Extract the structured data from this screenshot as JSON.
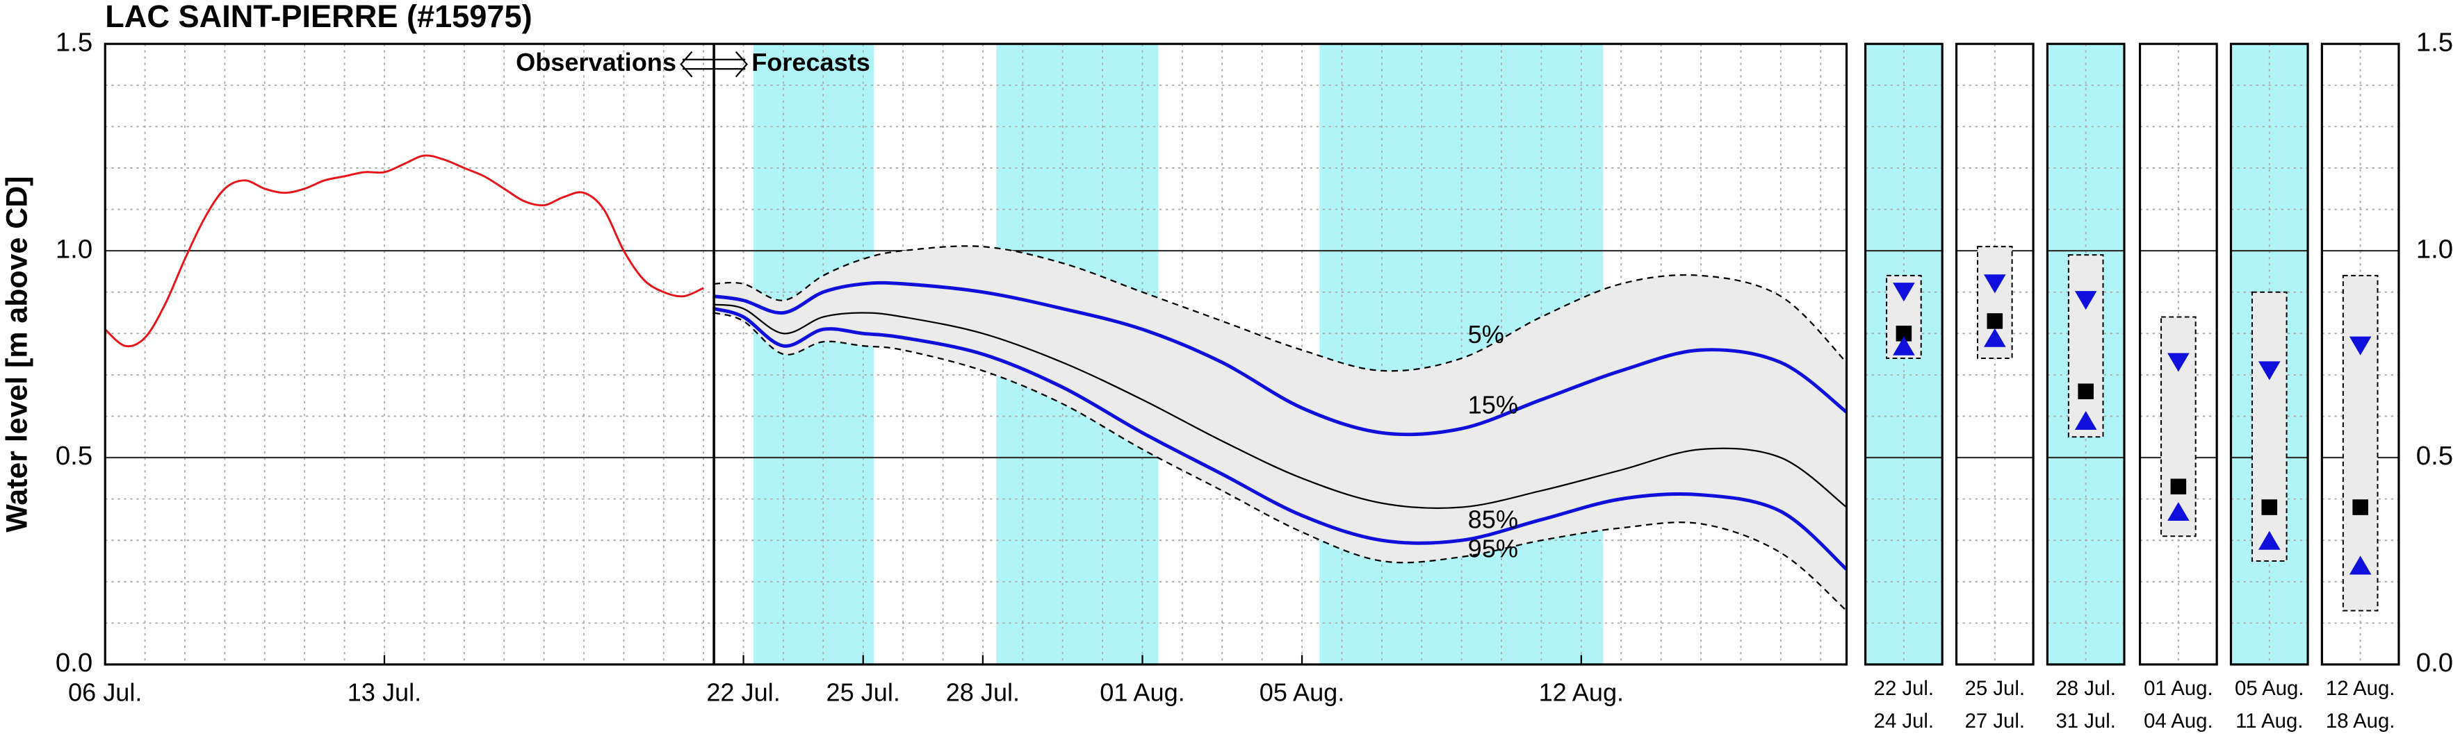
{
  "chart_data": [
    {
      "type": "line",
      "title": "LAC SAINT-PIERRE (#15975)",
      "ylabel": "Water level [m above CD]",
      "annotation_left": "Observations",
      "annotation_right": "Forecasts",
      "divider": 15.26,
      "xlim": [
        0,
        43.65
      ],
      "xticks": [
        {
          "value": 0,
          "label": "06 Jul."
        },
        {
          "value": 7,
          "label": "13 Jul."
        },
        {
          "value": 16,
          "label": "22 Jul."
        },
        {
          "value": 19,
          "label": "25 Jul."
        },
        {
          "value": 22,
          "label": "28 Jul."
        },
        {
          "value": 26,
          "label": "01 Aug."
        },
        {
          "value": 30,
          "label": "05 Aug."
        },
        {
          "value": 37,
          "label": "12 Aug."
        }
      ],
      "ylim": [
        0,
        1.5
      ],
      "yticks": [
        {
          "value": 0,
          "label": "0.0"
        },
        0.5,
        {
          "value": 1,
          "label": "1.0"
        },
        1.5
      ],
      "grid": true,
      "minor_xstep": 1,
      "minor_ystep": 0.1,
      "shade_color": "#b0f4f7",
      "shaded_ranges": [
        [
          16.25,
          19.27
        ],
        [
          22.34,
          26.4
        ],
        [
          30.44,
          37.55
        ]
      ],
      "fill_color": "#ebebeb",
      "observed": {
        "color": "#e8141b",
        "x": [
          0,
          0.5,
          1,
          1.5,
          2,
          2.5,
          3,
          3.5,
          4,
          4.5,
          5,
          5.5,
          6,
          6.5,
          7,
          7.5,
          8,
          8.5,
          9,
          9.5,
          10,
          10.5,
          11,
          11.5,
          12,
          12.5,
          13,
          13.5,
          14,
          14.5,
          15
        ],
        "values": [
          0.81,
          0.77,
          0.79,
          0.87,
          0.98,
          1.08,
          1.15,
          1.17,
          1.15,
          1.14,
          1.15,
          1.17,
          1.18,
          1.19,
          1.19,
          1.21,
          1.23,
          1.22,
          1.2,
          1.18,
          1.15,
          1.12,
          1.11,
          1.13,
          1.14,
          1.1,
          1.0,
          0.93,
          0.9,
          0.89,
          0.91
        ]
      },
      "x": [
        15.26,
        16,
        17,
        18,
        19,
        20,
        22,
        24,
        26,
        28,
        30,
        32,
        34,
        36,
        38,
        40,
        42,
        43.65
      ],
      "series": [
        {
          "name": "5%",
          "color": "#000000",
          "dashed": true,
          "values": [
            0.92,
            0.92,
            0.88,
            0.94,
            0.98,
            1.0,
            1.01,
            0.97,
            0.9,
            0.83,
            0.76,
            0.71,
            0.74,
            0.84,
            0.92,
            0.94,
            0.89,
            0.73
          ]
        },
        {
          "name": "15%",
          "color": "#1010dd",
          "dashed": false,
          "values": [
            0.89,
            0.88,
            0.85,
            0.9,
            0.92,
            0.92,
            0.9,
            0.86,
            0.81,
            0.73,
            0.62,
            0.56,
            0.57,
            0.64,
            0.71,
            0.76,
            0.73,
            0.61
          ]
        },
        {
          "color": "#000000",
          "dashed": false,
          "values": [
            0.87,
            0.86,
            0.8,
            0.84,
            0.85,
            0.84,
            0.8,
            0.73,
            0.64,
            0.54,
            0.45,
            0.39,
            0.38,
            0.42,
            0.47,
            0.52,
            0.5,
            0.38
          ]
        },
        {
          "name": "85%",
          "color": "#1010dd",
          "dashed": false,
          "values": [
            0.86,
            0.84,
            0.77,
            0.81,
            0.8,
            0.79,
            0.75,
            0.67,
            0.56,
            0.46,
            0.36,
            0.3,
            0.3,
            0.35,
            0.4,
            0.41,
            0.37,
            0.23
          ]
        },
        {
          "name": "95%",
          "color": "#000000",
          "dashed": true,
          "values": [
            0.85,
            0.83,
            0.75,
            0.78,
            0.77,
            0.76,
            0.71,
            0.63,
            0.52,
            0.42,
            0.32,
            0.25,
            0.26,
            0.3,
            0.33,
            0.34,
            0.27,
            0.13
          ]
        }
      ]
    },
    {
      "type": "range",
      "categories": [
        [
          "22 Jul.",
          "24 Jul."
        ],
        [
          "25 Jul.",
          "27 Jul."
        ],
        [
          "28 Jul.",
          "31 Jul."
        ],
        [
          "01 Aug.",
          "04 Aug."
        ],
        [
          "05 Aug.",
          "11 Aug."
        ],
        [
          "12 Aug.",
          "18 Aug."
        ]
      ],
      "shaded": [
        true,
        false,
        true,
        false,
        true,
        false
      ],
      "high": [
        0.94,
        1.01,
        0.99,
        0.84,
        0.9,
        0.94
      ],
      "low": [
        0.74,
        0.74,
        0.55,
        0.31,
        0.25,
        0.13
      ],
      "upper": [
        0.9,
        0.92,
        0.88,
        0.73,
        0.71,
        0.77
      ],
      "median": [
        0.8,
        0.83,
        0.66,
        0.43,
        0.38,
        0.38
      ],
      "lower": [
        0.77,
        0.79,
        0.59,
        0.37,
        0.3,
        0.24
      ],
      "marker_color": "#1010dd",
      "median_color": "#000000",
      "box_color": "#ebebeb",
      "shade_color": "#b0f4f7",
      "ylim": [
        0,
        1.5
      ],
      "yticks": [
        {
          "value": 0,
          "label": "0.0"
        },
        0.5,
        {
          "value": 1,
          "label": "1.0"
        },
        1.5
      ]
    }
  ]
}
